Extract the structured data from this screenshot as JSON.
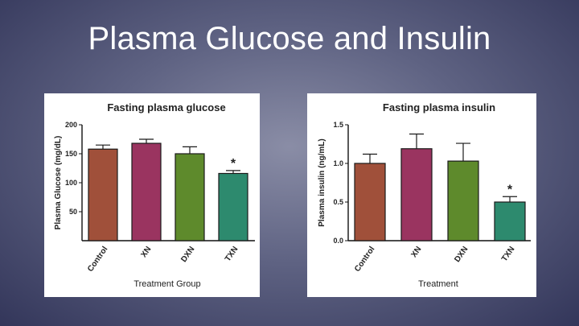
{
  "slide": {
    "title": "Plasma Glucose and Insulin"
  },
  "chart_data": [
    {
      "type": "bar",
      "title": "Fasting plasma glucose",
      "xlabel": "Treatment Group",
      "ylabel": "Plasma Glucose (mg/dL)",
      "categories": [
        "Control",
        "XN",
        "DXN",
        "TXN"
      ],
      "values": [
        158,
        168,
        150,
        116
      ],
      "errors": [
        7,
        7,
        12,
        5
      ],
      "significance": [
        "",
        "",
        "",
        "*"
      ],
      "ylim": [
        0,
        200
      ],
      "yticks": [
        "50",
        "100",
        "150",
        "200"
      ],
      "yticks_values": [
        50,
        100,
        150,
        200
      ],
      "colors": [
        "#a0503a",
        "#9a3460",
        "#5e8a2c",
        "#2d8a6e"
      ]
    },
    {
      "type": "bar",
      "title": "Fasting plasma insulin",
      "xlabel": "Treatment",
      "ylabel": "Plasma insulin (ng/mL)",
      "categories": [
        "Control",
        "XN",
        "DXN",
        "TXN"
      ],
      "values": [
        1.0,
        1.19,
        1.03,
        0.5
      ],
      "errors": [
        0.12,
        0.19,
        0.23,
        0.07
      ],
      "significance": [
        "",
        "",
        "",
        "*"
      ],
      "ylim": [
        0,
        1.5
      ],
      "yticks": [
        "0.0",
        "0.5",
        "1.0",
        "1.5"
      ],
      "yticks_values": [
        0,
        0.5,
        1.0,
        1.5
      ],
      "colors": [
        "#a0503a",
        "#9a3460",
        "#5e8a2c",
        "#2d8a6e"
      ]
    }
  ]
}
